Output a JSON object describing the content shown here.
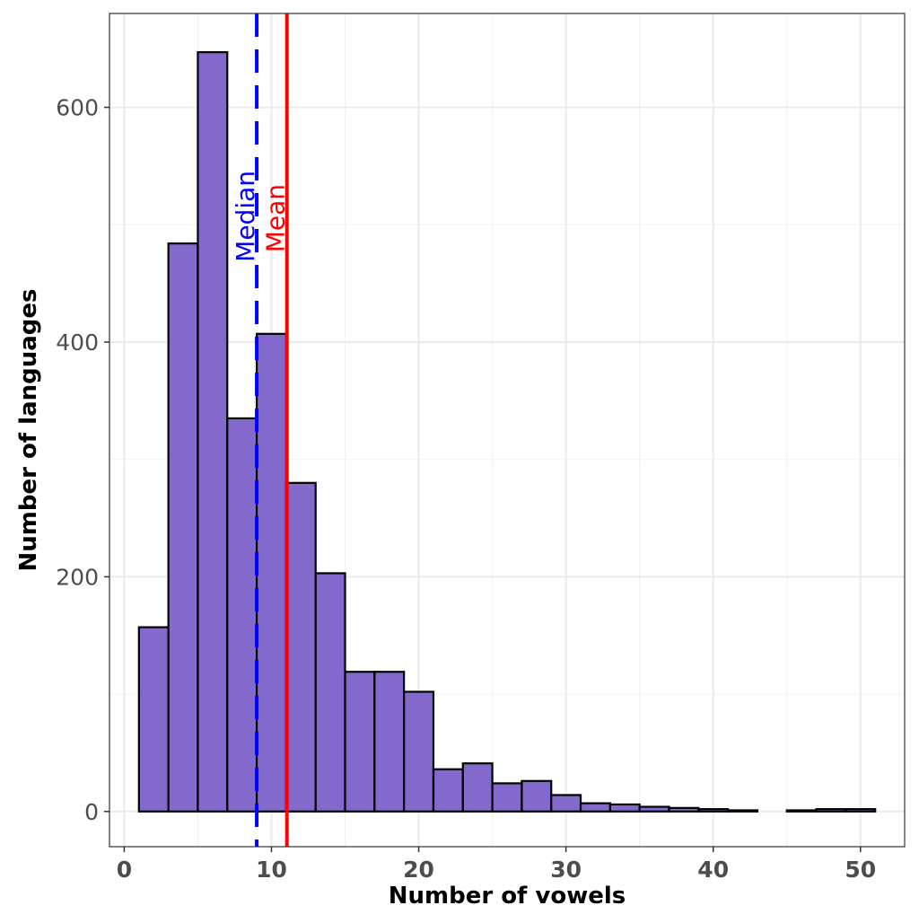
{
  "chart_data": {
    "type": "bar",
    "subtype": "histogram",
    "xlabel": "Number of vowels",
    "ylabel": "Number of languages",
    "xlim": [
      -1,
      53
    ],
    "ylim": [
      -30,
      680
    ],
    "x_ticks": [
      0,
      10,
      20,
      30,
      40,
      50
    ],
    "y_ticks": [
      0,
      200,
      400,
      600
    ],
    "grid": true,
    "bin_width": 2,
    "bins": [
      {
        "start": 1,
        "end": 3,
        "count": 157
      },
      {
        "start": 3,
        "end": 5,
        "count": 484
      },
      {
        "start": 5,
        "end": 7,
        "count": 647
      },
      {
        "start": 7,
        "end": 9,
        "count": 335
      },
      {
        "start": 9,
        "end": 11,
        "count": 407
      },
      {
        "start": 11,
        "end": 13,
        "count": 280
      },
      {
        "start": 13,
        "end": 15,
        "count": 203
      },
      {
        "start": 15,
        "end": 17,
        "count": 119
      },
      {
        "start": 17,
        "end": 19,
        "count": 119
      },
      {
        "start": 19,
        "end": 21,
        "count": 102
      },
      {
        "start": 21,
        "end": 23,
        "count": 36
      },
      {
        "start": 23,
        "end": 25,
        "count": 41
      },
      {
        "start": 25,
        "end": 27,
        "count": 24
      },
      {
        "start": 27,
        "end": 29,
        "count": 26
      },
      {
        "start": 29,
        "end": 31,
        "count": 14
      },
      {
        "start": 31,
        "end": 33,
        "count": 7
      },
      {
        "start": 33,
        "end": 35,
        "count": 6
      },
      {
        "start": 35,
        "end": 37,
        "count": 4
      },
      {
        "start": 37,
        "end": 39,
        "count": 3
      },
      {
        "start": 39,
        "end": 41,
        "count": 2
      },
      {
        "start": 41,
        "end": 43,
        "count": 1
      },
      {
        "start": 43,
        "end": 45,
        "count": 0
      },
      {
        "start": 45,
        "end": 47,
        "count": 1
      },
      {
        "start": 47,
        "end": 49,
        "count": 2
      },
      {
        "start": 49,
        "end": 51,
        "count": 2
      }
    ],
    "bar_color": "#8469CC",
    "reference_lines": [
      {
        "label": "Median",
        "value": 9,
        "color": "#0000FF",
        "style": "dashed"
      },
      {
        "label": "Mean",
        "value": 11.05,
        "color": "#FF0000",
        "style": "solid"
      }
    ]
  }
}
